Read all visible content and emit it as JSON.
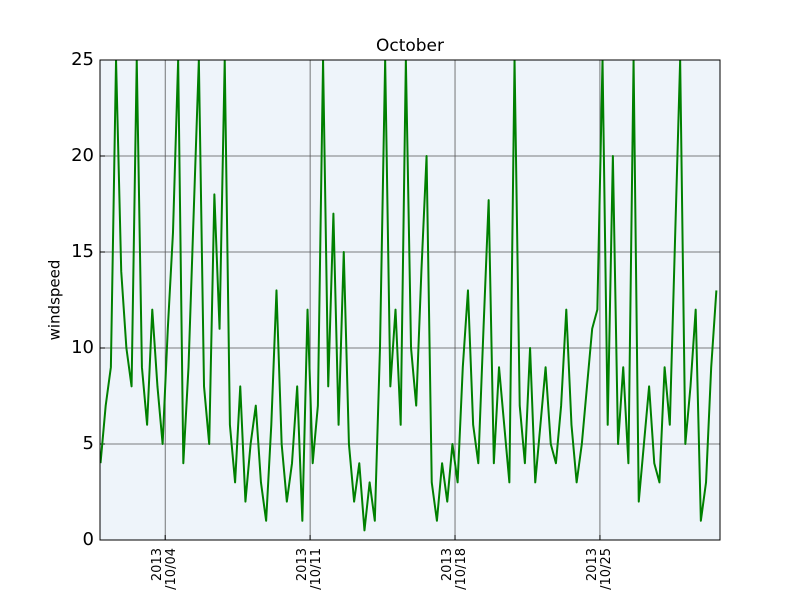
{
  "chart_data": {
    "type": "line",
    "title": "October",
    "y_label": "windspeed",
    "xlim": [
      0.85,
      30.8
    ],
    "ylim": [
      0,
      25
    ],
    "yticks": [
      0,
      5,
      10,
      15,
      20,
      25
    ],
    "xticks": [
      {
        "value": 4,
        "label": "2013\n/10/04"
      },
      {
        "value": 11,
        "label": "2013\n/10/11"
      },
      {
        "value": 18,
        "label": "2013\n/10/18"
      },
      {
        "value": 25,
        "label": "2013\n/10/25"
      }
    ],
    "grid": true,
    "series": [
      {
        "name": "windspeed",
        "color": "#008000",
        "x": [
          0.875,
          1.125,
          1.375,
          1.625,
          1.875,
          2.125,
          2.375,
          2.625,
          2.875,
          3.125,
          3.375,
          3.625,
          3.875,
          4.125,
          4.375,
          4.625,
          4.875,
          5.125,
          5.375,
          5.625,
          5.875,
          6.125,
          6.375,
          6.625,
          6.875,
          7.125,
          7.375,
          7.625,
          7.875,
          8.125,
          8.375,
          8.625,
          8.875,
          9.125,
          9.375,
          9.625,
          9.875,
          10.125,
          10.375,
          10.625,
          10.875,
          11.125,
          11.375,
          11.625,
          11.875,
          12.125,
          12.375,
          12.625,
          12.875,
          13.125,
          13.375,
          13.625,
          13.875,
          14.125,
          14.375,
          14.625,
          14.875,
          15.125,
          15.375,
          15.625,
          15.875,
          16.125,
          16.375,
          16.625,
          16.875,
          17.125,
          17.375,
          17.625,
          17.875,
          18.125,
          18.375,
          18.625,
          18.875,
          19.125,
          19.375,
          19.625,
          19.875,
          20.125,
          20.375,
          20.625,
          20.875,
          21.125,
          21.375,
          21.625,
          21.875,
          22.125,
          22.375,
          22.625,
          22.875,
          23.125,
          23.375,
          23.625,
          23.875,
          24.125,
          24.375,
          24.625,
          24.875,
          25.125,
          25.375,
          25.625,
          25.875,
          26.125,
          26.375,
          26.625,
          26.875,
          27.125,
          27.375,
          27.625,
          27.875,
          28.125,
          28.375,
          28.625,
          28.875,
          29.125,
          29.375,
          29.625,
          29.875,
          30.125,
          30.375,
          30.625
        ],
        "values": [
          4,
          7,
          9,
          25,
          14,
          10,
          8,
          25,
          9,
          6,
          12,
          8,
          5,
          11,
          16,
          25,
          4,
          9,
          17,
          25,
          8,
          5,
          18,
          11,
          25,
          6,
          3,
          8,
          2,
          5,
          7,
          3,
          1,
          6,
          13,
          5,
          2,
          4,
          8,
          1,
          12,
          4,
          7,
          25,
          8,
          17,
          6,
          15,
          5,
          2,
          4,
          0.5,
          3,
          1,
          10,
          25,
          8,
          12,
          6,
          25,
          10,
          7,
          14,
          20,
          3,
          1,
          4,
          2,
          5,
          3,
          9,
          13,
          6,
          4,
          11,
          17.7,
          4,
          9,
          6,
          3,
          25,
          7,
          4,
          10,
          3,
          6,
          9,
          5,
          4,
          7,
          12,
          6,
          3,
          5,
          8,
          11,
          12,
          25,
          6,
          20,
          5,
          9,
          4,
          25,
          2,
          5,
          8,
          4,
          3,
          9,
          6,
          15.5,
          25,
          5,
          8,
          12,
          1,
          3,
          9,
          13
        ]
      }
    ]
  }
}
